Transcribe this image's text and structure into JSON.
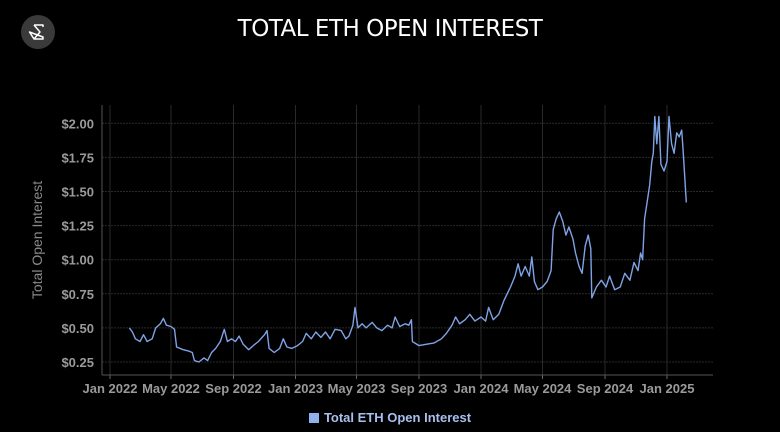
{
  "header": {
    "title": "TOTAL ETH OPEN INTEREST",
    "logo_icon": "sigma-hexagon-icon"
  },
  "chart_data": {
    "type": "line",
    "title": "TOTAL ETH OPEN INTEREST",
    "xlabel": "",
    "ylabel": "Total Open Interest",
    "ylim": [
      0.15,
      2.12
    ],
    "xlim": [
      "2021-12-16",
      "2025-04-10"
    ],
    "grid": true,
    "legend": "bottom",
    "color": "#7fa3e6",
    "yticks": [
      0.25,
      0.5,
      0.75,
      1.0,
      1.25,
      1.5,
      1.75,
      2.0
    ],
    "ytick_labels": [
      "$0.25",
      "$0.50",
      "$0.75",
      "$1.00",
      "$1.25",
      "$1.50",
      "$1.75",
      "$2.00"
    ],
    "xticks": [
      "2022-01-01",
      "2022-05-01",
      "2022-09-01",
      "2023-01-01",
      "2023-05-01",
      "2023-09-01",
      "2024-01-01",
      "2024-05-01",
      "2024-09-01",
      "2025-01-01"
    ],
    "xtick_labels": [
      "Jan 2022",
      "May 2022",
      "Sep 2022",
      "Jan 2023",
      "May 2023",
      "Sep 2023",
      "Jan 2024",
      "May 2024",
      "Sep 2024",
      "Jan 2025"
    ],
    "series": [
      {
        "name": "Total ETH Open Interest",
        "points": [
          [
            "2022-02-08",
            0.5
          ],
          [
            "2022-02-14",
            0.47
          ],
          [
            "2022-02-20",
            0.42
          ],
          [
            "2022-03-01",
            0.4
          ],
          [
            "2022-03-08",
            0.45
          ],
          [
            "2022-03-15",
            0.4
          ],
          [
            "2022-03-25",
            0.42
          ],
          [
            "2022-04-01",
            0.5
          ],
          [
            "2022-04-10",
            0.53
          ],
          [
            "2022-04-16",
            0.57
          ],
          [
            "2022-04-22",
            0.52
          ],
          [
            "2022-05-01",
            0.51
          ],
          [
            "2022-05-08",
            0.49
          ],
          [
            "2022-05-12",
            0.36
          ],
          [
            "2022-05-25",
            0.34
          ],
          [
            "2022-06-05",
            0.33
          ],
          [
            "2022-06-12",
            0.32
          ],
          [
            "2022-06-16",
            0.26
          ],
          [
            "2022-06-25",
            0.25
          ],
          [
            "2022-07-05",
            0.28
          ],
          [
            "2022-07-12",
            0.26
          ],
          [
            "2022-07-20",
            0.32
          ],
          [
            "2022-07-28",
            0.35
          ],
          [
            "2022-08-06",
            0.4
          ],
          [
            "2022-08-14",
            0.49
          ],
          [
            "2022-08-20",
            0.4
          ],
          [
            "2022-08-28",
            0.42
          ],
          [
            "2022-09-05",
            0.4
          ],
          [
            "2022-09-12",
            0.44
          ],
          [
            "2022-09-20",
            0.38
          ],
          [
            "2022-10-01",
            0.34
          ],
          [
            "2022-10-10",
            0.37
          ],
          [
            "2022-10-20",
            0.4
          ],
          [
            "2022-11-01",
            0.45
          ],
          [
            "2022-11-06",
            0.48
          ],
          [
            "2022-11-10",
            0.35
          ],
          [
            "2022-11-20",
            0.32
          ],
          [
            "2022-12-01",
            0.35
          ],
          [
            "2022-12-08",
            0.42
          ],
          [
            "2022-12-15",
            0.36
          ],
          [
            "2022-12-25",
            0.35
          ],
          [
            "2023-01-05",
            0.37
          ],
          [
            "2023-01-15",
            0.4
          ],
          [
            "2023-01-22",
            0.46
          ],
          [
            "2023-02-01",
            0.42
          ],
          [
            "2023-02-10",
            0.47
          ],
          [
            "2023-02-20",
            0.43
          ],
          [
            "2023-03-01",
            0.47
          ],
          [
            "2023-03-10",
            0.42
          ],
          [
            "2023-03-20",
            0.49
          ],
          [
            "2023-04-01",
            0.48
          ],
          [
            "2023-04-10",
            0.42
          ],
          [
            "2023-04-16",
            0.44
          ],
          [
            "2023-04-24",
            0.52
          ],
          [
            "2023-04-28",
            0.65
          ],
          [
            "2023-05-04",
            0.5
          ],
          [
            "2023-05-12",
            0.53
          ],
          [
            "2023-05-20",
            0.5
          ],
          [
            "2023-06-01",
            0.54
          ],
          [
            "2023-06-10",
            0.5
          ],
          [
            "2023-06-20",
            0.48
          ],
          [
            "2023-07-01",
            0.52
          ],
          [
            "2023-07-10",
            0.5
          ],
          [
            "2023-07-16",
            0.58
          ],
          [
            "2023-07-25",
            0.51
          ],
          [
            "2023-08-05",
            0.53
          ],
          [
            "2023-08-12",
            0.52
          ],
          [
            "2023-08-17",
            0.56
          ],
          [
            "2023-08-19",
            0.4
          ],
          [
            "2023-09-01",
            0.37
          ],
          [
            "2023-09-15",
            0.38
          ],
          [
            "2023-10-01",
            0.39
          ],
          [
            "2023-10-15",
            0.42
          ],
          [
            "2023-10-25",
            0.46
          ],
          [
            "2023-11-05",
            0.52
          ],
          [
            "2023-11-12",
            0.58
          ],
          [
            "2023-11-20",
            0.53
          ],
          [
            "2023-12-01",
            0.56
          ],
          [
            "2023-12-10",
            0.6
          ],
          [
            "2023-12-20",
            0.55
          ],
          [
            "2024-01-01",
            0.58
          ],
          [
            "2024-01-10",
            0.55
          ],
          [
            "2024-01-16",
            0.65
          ],
          [
            "2024-01-25",
            0.56
          ],
          [
            "2024-02-05",
            0.6
          ],
          [
            "2024-02-15",
            0.7
          ],
          [
            "2024-02-28",
            0.8
          ],
          [
            "2024-03-08",
            0.88
          ],
          [
            "2024-03-14",
            0.97
          ],
          [
            "2024-03-20",
            0.88
          ],
          [
            "2024-03-28",
            0.95
          ],
          [
            "2024-04-05",
            0.88
          ],
          [
            "2024-04-10",
            1.02
          ],
          [
            "2024-04-15",
            0.84
          ],
          [
            "2024-04-22",
            0.78
          ],
          [
            "2024-05-01",
            0.8
          ],
          [
            "2024-05-10",
            0.84
          ],
          [
            "2024-05-18",
            0.92
          ],
          [
            "2024-05-22",
            1.22
          ],
          [
            "2024-05-28",
            1.3
          ],
          [
            "2024-06-03",
            1.35
          ],
          [
            "2024-06-10",
            1.28
          ],
          [
            "2024-06-16",
            1.18
          ],
          [
            "2024-06-22",
            1.24
          ],
          [
            "2024-06-30",
            1.15
          ],
          [
            "2024-07-05",
            1.05
          ],
          [
            "2024-07-12",
            0.95
          ],
          [
            "2024-07-18",
            0.9
          ],
          [
            "2024-07-24",
            1.1
          ],
          [
            "2024-07-30",
            1.18
          ],
          [
            "2024-08-04",
            1.08
          ],
          [
            "2024-08-06",
            0.72
          ],
          [
            "2024-08-15",
            0.8
          ],
          [
            "2024-08-25",
            0.85
          ],
          [
            "2024-09-03",
            0.8
          ],
          [
            "2024-09-10",
            0.88
          ],
          [
            "2024-09-20",
            0.78
          ],
          [
            "2024-10-01",
            0.8
          ],
          [
            "2024-10-10",
            0.9
          ],
          [
            "2024-10-20",
            0.85
          ],
          [
            "2024-10-28",
            0.98
          ],
          [
            "2024-11-05",
            0.92
          ],
          [
            "2024-11-10",
            1.05
          ],
          [
            "2024-11-14",
            1.0
          ],
          [
            "2024-11-18",
            1.3
          ],
          [
            "2024-11-24",
            1.45
          ],
          [
            "2024-11-28",
            1.55
          ],
          [
            "2024-12-02",
            1.72
          ],
          [
            "2024-12-05",
            1.78
          ],
          [
            "2024-12-08",
            2.05
          ],
          [
            "2024-12-12",
            1.85
          ],
          [
            "2024-12-16",
            2.05
          ],
          [
            "2024-12-20",
            1.7
          ],
          [
            "2024-12-26",
            1.65
          ],
          [
            "2025-01-01",
            1.72
          ],
          [
            "2025-01-05",
            2.05
          ],
          [
            "2025-01-10",
            1.85
          ],
          [
            "2025-01-15",
            1.78
          ],
          [
            "2025-01-20",
            1.93
          ],
          [
            "2025-01-25",
            1.9
          ],
          [
            "2025-01-30",
            1.95
          ],
          [
            "2025-02-02",
            1.78
          ],
          [
            "2025-02-08",
            1.42
          ]
        ]
      }
    ]
  }
}
